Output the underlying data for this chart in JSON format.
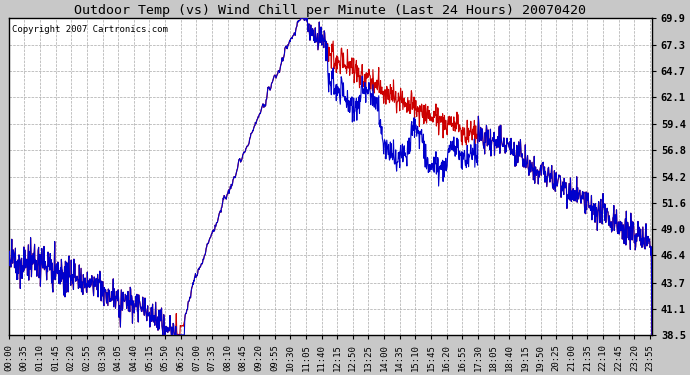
{
  "title": "Outdoor Temp (vs) Wind Chill per Minute (Last 24 Hours) 20070420",
  "copyright": "Copyright 2007 Cartronics.com",
  "yticks": [
    38.5,
    41.1,
    43.7,
    46.4,
    49.0,
    51.6,
    54.2,
    56.8,
    59.4,
    62.1,
    64.7,
    67.3,
    69.9
  ],
  "ymin": 38.5,
  "ymax": 69.9,
  "background_color": "#ffffff",
  "grid_color": "#aaaaaa",
  "outer_bg": "#c8c8c8",
  "red_color": "#cc0000",
  "blue_color": "#0000cc",
  "xtick_labels": [
    "00:00",
    "00:35",
    "01:10",
    "01:45",
    "02:20",
    "02:55",
    "03:30",
    "04:05",
    "04:40",
    "05:15",
    "05:50",
    "06:25",
    "07:00",
    "07:35",
    "08:10",
    "08:45",
    "09:20",
    "09:55",
    "10:30",
    "11:05",
    "11:40",
    "12:15",
    "12:50",
    "13:25",
    "14:00",
    "14:35",
    "15:10",
    "15:45",
    "16:20",
    "16:55",
    "17:30",
    "18:05",
    "18:40",
    "19:15",
    "19:50",
    "20:25",
    "21:00",
    "21:35",
    "22:10",
    "22:45",
    "23:20",
    "23:55"
  ],
  "n_minutes": 1440
}
